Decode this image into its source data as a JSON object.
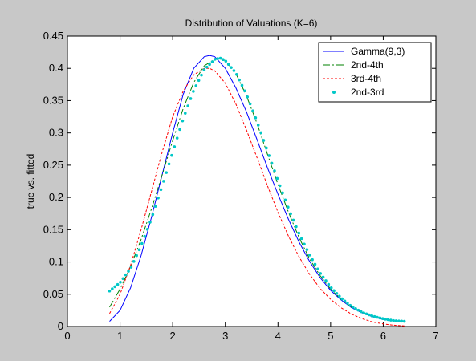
{
  "chart_data": {
    "type": "line",
    "title": "Distribution of Valuations (K=6)",
    "xlabel": "",
    "ylabel": "true vs. fitted",
    "xlim": [
      0,
      7
    ],
    "ylim": [
      0,
      0.45
    ],
    "x_ticks": [
      0,
      1,
      2,
      3,
      4,
      5,
      6,
      7
    ],
    "y_ticks": [
      0,
      0.05,
      0.1,
      0.15,
      0.2,
      0.25,
      0.3,
      0.35,
      0.4,
      0.45
    ],
    "x_tick_labels": [
      "0",
      "1",
      "2",
      "3",
      "4",
      "5",
      "6",
      "7"
    ],
    "y_tick_labels": [
      "0",
      "0.05",
      "0.1",
      "0.15",
      "0.2",
      "0.25",
      "0.3",
      "0.35",
      "0.4",
      "0.45"
    ],
    "legend_position": "top-right",
    "grid": false,
    "series": [
      {
        "name": "Gamma(9,3)",
        "color": "#0000ff",
        "style": "solid",
        "x": [
          0.8,
          1.0,
          1.2,
          1.4,
          1.6,
          1.8,
          2.0,
          2.2,
          2.4,
          2.6,
          2.7,
          2.8,
          3.0,
          3.2,
          3.4,
          3.6,
          3.8,
          4.0,
          4.2,
          4.4,
          4.6,
          4.8,
          5.0,
          5.2,
          5.4,
          5.6,
          5.8,
          6.0,
          6.2,
          6.4
        ],
        "y": [
          0.008,
          0.025,
          0.06,
          0.11,
          0.17,
          0.235,
          0.3,
          0.36,
          0.4,
          0.418,
          0.42,
          0.418,
          0.4,
          0.37,
          0.333,
          0.29,
          0.246,
          0.205,
          0.166,
          0.131,
          0.101,
          0.076,
          0.056,
          0.041,
          0.029,
          0.021,
          0.015,
          0.011,
          0.009,
          0.008
        ]
      },
      {
        "name": "2nd-4th",
        "color": "#008000",
        "style": "dashdot",
        "x": [
          0.8,
          1.0,
          1.2,
          1.4,
          1.6,
          1.8,
          2.0,
          2.2,
          2.4,
          2.6,
          2.8,
          2.9,
          3.0,
          3.2,
          3.4,
          3.6,
          3.8,
          4.0,
          4.2,
          4.4,
          4.6,
          4.8,
          5.0,
          5.2,
          5.4,
          5.6,
          5.8,
          6.0,
          6.2,
          6.4
        ],
        "y": [
          0.03,
          0.058,
          0.093,
          0.135,
          0.183,
          0.235,
          0.288,
          0.338,
          0.378,
          0.404,
          0.414,
          0.415,
          0.412,
          0.392,
          0.358,
          0.315,
          0.267,
          0.22,
          0.177,
          0.138,
          0.105,
          0.079,
          0.058,
          0.042,
          0.03,
          0.022,
          0.016,
          0.012,
          0.009,
          0.008
        ]
      },
      {
        "name": "3rd-4th",
        "color": "#ff0000",
        "style": "dotted",
        "x": [
          0.8,
          1.0,
          1.2,
          1.4,
          1.6,
          1.8,
          2.0,
          2.2,
          2.4,
          2.6,
          2.7,
          2.8,
          3.0,
          3.2,
          3.4,
          3.6,
          3.8,
          4.0,
          4.2,
          4.4,
          4.6,
          4.8,
          5.0,
          5.2,
          5.4,
          5.6,
          5.8,
          6.0,
          6.2,
          6.4
        ],
        "y": [
          0.02,
          0.05,
          0.095,
          0.15,
          0.21,
          0.27,
          0.325,
          0.365,
          0.39,
          0.4,
          0.4,
          0.396,
          0.377,
          0.345,
          0.305,
          0.262,
          0.218,
          0.177,
          0.14,
          0.108,
          0.081,
          0.059,
          0.042,
          0.029,
          0.019,
          0.012,
          0.007,
          0.004,
          0.002,
          0.001
        ]
      },
      {
        "name": "2nd-3rd",
        "color": "#00c8c8",
        "style": "dots",
        "x": [
          0.8,
          1.0,
          1.2,
          1.4,
          1.6,
          1.8,
          2.0,
          2.2,
          2.4,
          2.6,
          2.8,
          2.9,
          3.0,
          3.2,
          3.4,
          3.6,
          3.8,
          4.0,
          4.2,
          4.4,
          4.6,
          4.8,
          5.0,
          5.2,
          5.4,
          5.6,
          5.8,
          6.0,
          6.2,
          6.4
        ],
        "y": [
          0.055,
          0.068,
          0.09,
          0.125,
          0.168,
          0.218,
          0.27,
          0.322,
          0.366,
          0.398,
          0.414,
          0.416,
          0.412,
          0.393,
          0.36,
          0.318,
          0.272,
          0.226,
          0.183,
          0.144,
          0.111,
          0.083,
          0.061,
          0.044,
          0.031,
          0.022,
          0.016,
          0.012,
          0.009,
          0.008
        ]
      }
    ]
  }
}
